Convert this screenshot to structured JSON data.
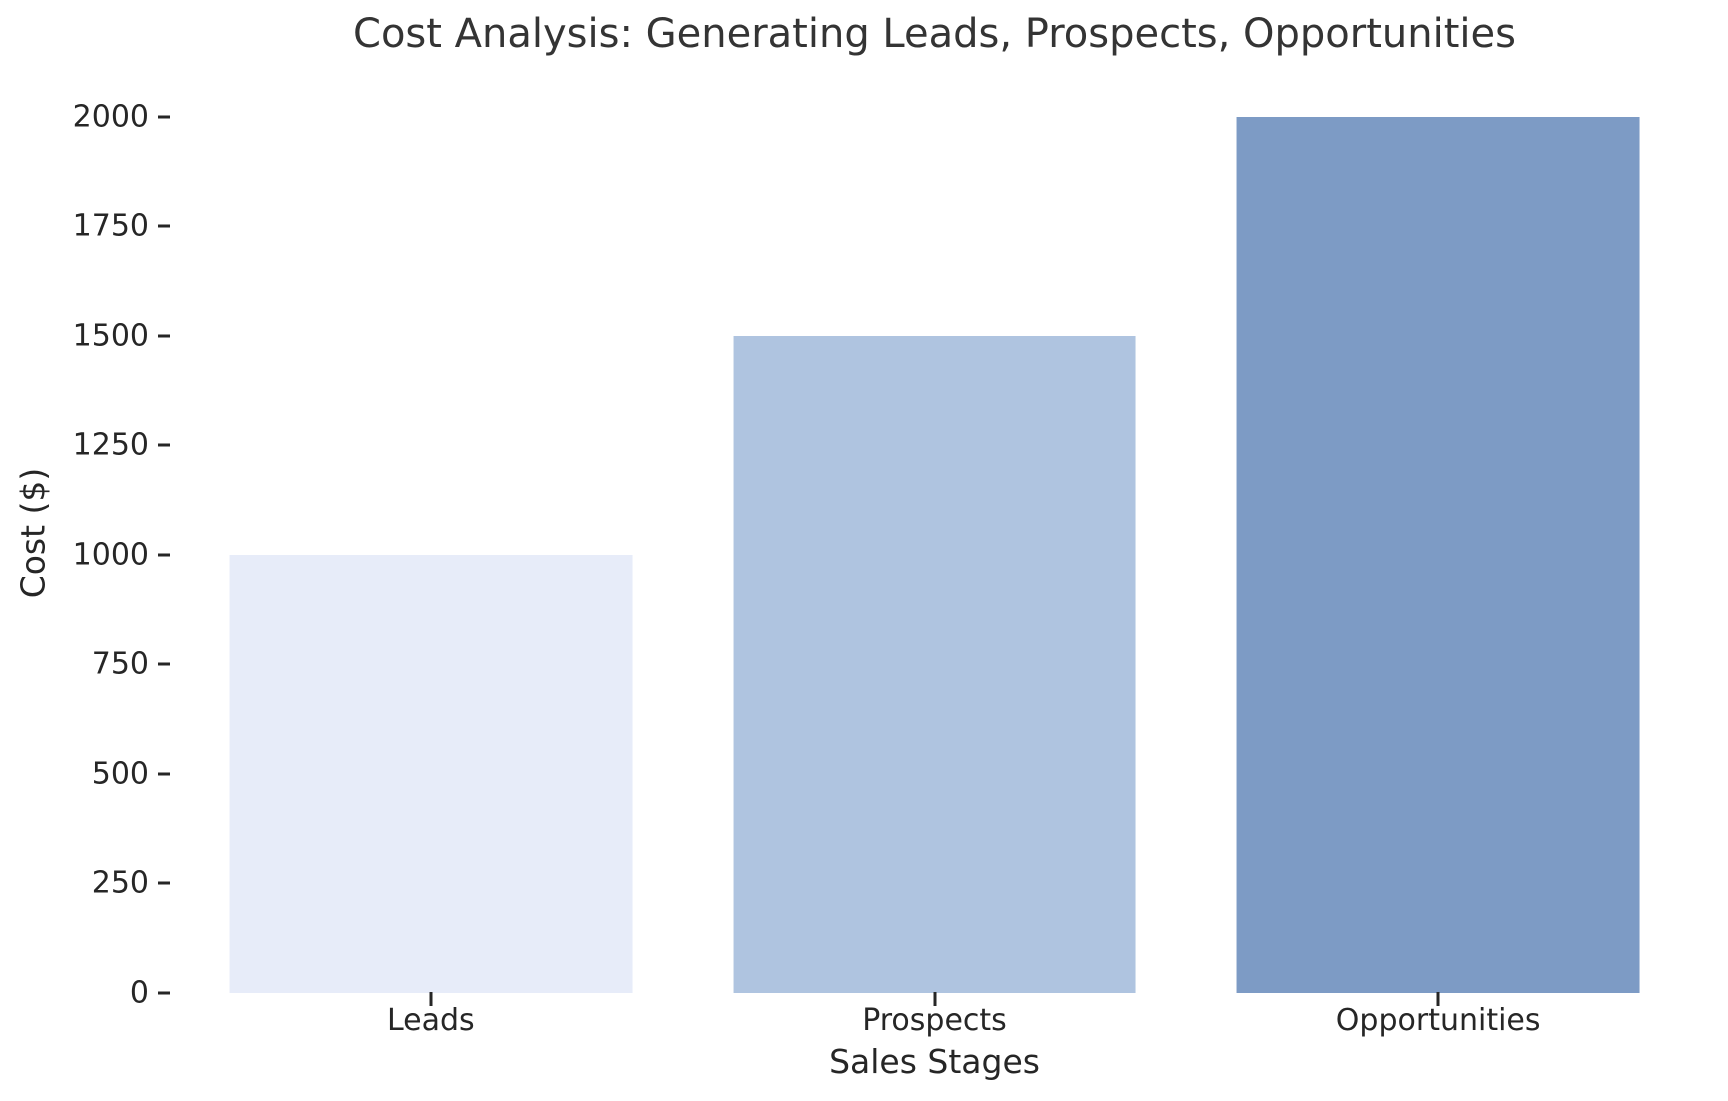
{
  "chart_data": {
    "type": "bar",
    "title": "Cost Analysis: Generating Leads, Prospects, Opportunities",
    "xlabel": "Sales Stages",
    "ylabel": "Cost ($)",
    "categories": [
      "Leads",
      "Prospects",
      "Opportunities"
    ],
    "values": [
      1000,
      1500,
      2000
    ],
    "bar_colors": [
      "#e7ecf9",
      "#afc4e0",
      "#7d9bc5"
    ],
    "yticks": [
      0,
      250,
      500,
      750,
      1000,
      1250,
      1500,
      1750,
      2000
    ],
    "ylim": [
      0,
      2100
    ],
    "bar_width_fraction": 0.8,
    "grid": false,
    "legend": "none",
    "background_color": "#ffffff",
    "text_color": "#262626",
    "title_color": "#343434"
  }
}
